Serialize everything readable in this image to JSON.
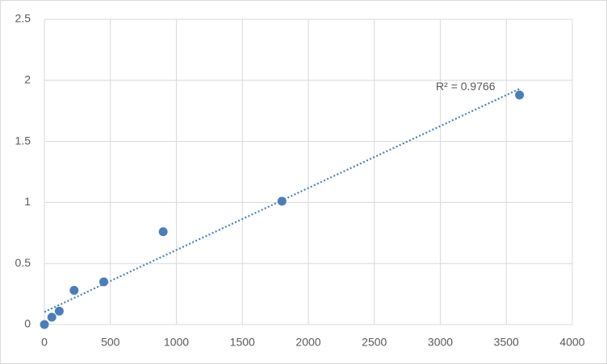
{
  "chart_data": {
    "type": "scatter",
    "x": [
      0,
      56.25,
      112.5,
      225,
      450,
      900,
      1800,
      3600
    ],
    "values": [
      0,
      0.06,
      0.11,
      0.28,
      0.35,
      0.76,
      1.01,
      1.88
    ],
    "color": "#4a7ebb",
    "xlim": [
      0,
      4000
    ],
    "xticks": [
      0,
      500,
      1000,
      1500,
      2000,
      2500,
      3000,
      3500,
      4000
    ],
    "ylim": [
      0,
      2.5
    ],
    "yticks": [
      0,
      0.5,
      1,
      1.5,
      2,
      2.5
    ],
    "grid": true,
    "trendline": "linear",
    "annotation": "R² = 0.9766"
  }
}
